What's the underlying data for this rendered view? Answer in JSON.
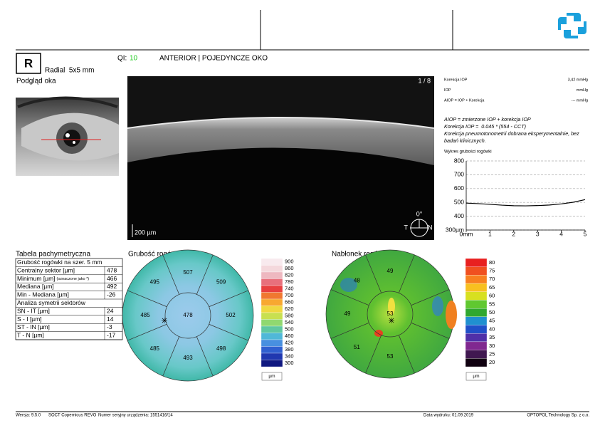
{
  "header": {
    "eye": "R",
    "scan": "Radial  5x5 mm",
    "preview": "Podgląd oka",
    "qi_label": "QI:",
    "qi_value": "10",
    "mode": "ANTERIOR | POJEDYNCZE OKO"
  },
  "oct": {
    "page": "1 / 8",
    "scale": "200 µm",
    "angle": "0°",
    "left": "T",
    "right": "N"
  },
  "iop": {
    "rows": [
      {
        "label": "Korekcja IOP",
        "value": "3,42 mmHg"
      },
      {
        "label": "IOP",
        "value": "mmHg"
      },
      {
        "label": "AIOP = IOP + Korekcja",
        "value": "--- mmHg"
      }
    ],
    "notes": [
      "AIOP = zmierzone IOP + korekcja IOP",
      "Korekcja IOP =  0.045 * (554 - CCT)",
      "Korekcja pneumotonometrii dobrana eksperymentalnie, bez",
      "badań klinicznych."
    ]
  },
  "profile_chart": {
    "type": "line",
    "title": "Wykres grubości rogówki",
    "x": [
      0,
      0.5,
      1,
      1.5,
      2,
      2.5,
      3,
      3.5,
      4,
      4.5,
      5
    ],
    "values": [
      495,
      491,
      486,
      480,
      476,
      475,
      477,
      481,
      489,
      501,
      520
    ],
    "color": "#000000",
    "xlim": [
      0,
      5
    ],
    "ylim": [
      300,
      800
    ],
    "xticks": [
      {
        "value": 0,
        "label": "0mm"
      },
      1,
      2,
      3,
      4,
      5
    ],
    "yticks": [
      {
        "value": 300,
        "label": "300µm"
      },
      400,
      500,
      600,
      700,
      800
    ],
    "grid": true
  },
  "table": {
    "title": "Tabela pachymetryczna",
    "sections": [
      {
        "title": "Grubość rogówki na szer. 5 mm",
        "rows": [
          {
            "label": "Centralny sektor [µm]",
            "value": 478
          },
          {
            "label": "Minimum [µm]",
            "note": "(oznaczone jako *)",
            "value": 466
          },
          {
            "label": "Mediana [µm]",
            "value": 492
          },
          {
            "label": "Min - Mediana [µm]",
            "value": -26
          }
        ]
      },
      {
        "title": "Analiza symetrii sektorów",
        "rows": [
          {
            "label": "SN - IT [µm]",
            "value": 24
          },
          {
            "label": "S - I [µm]",
            "value": 14
          },
          {
            "label": "ST - IN [µm]",
            "value": -3
          },
          {
            "label": "T - N [µm]",
            "value": -17
          }
        ]
      }
    ]
  },
  "thickness_map": {
    "title": "Grubość rogówki",
    "center": 478,
    "sectors": [
      507,
      509,
      502,
      498,
      493,
      485,
      485,
      495
    ],
    "scale": {
      "values": [
        900,
        860,
        820,
        780,
        740,
        700,
        660,
        620,
        580,
        540,
        500,
        460,
        420,
        380,
        340,
        300
      ],
      "colors": [
        "#f8eaee",
        "#f4d8dc",
        "#eeb8c0",
        "#e8707c",
        "#e84040",
        "#f07830",
        "#f8a830",
        "#f0d840",
        "#c8e050",
        "#90d870",
        "#60c8a0",
        "#50b8d8",
        "#4890e0",
        "#3060d0",
        "#2038b0",
        "#101880"
      ],
      "unit": "µm"
    }
  },
  "epithelium_map": {
    "title": "Nabłonek rogówki",
    "center": 53,
    "sectors": [
      49,
      null,
      null,
      null,
      53,
      51,
      49,
      48
    ],
    "scale": {
      "values": [
        80,
        75,
        70,
        65,
        60,
        55,
        50,
        45,
        40,
        35,
        30,
        25,
        20
      ],
      "colors": [
        "#e82020",
        "#f05020",
        "#f88020",
        "#f8c020",
        "#d8e020",
        "#60c830",
        "#30a830",
        "#2090d0",
        "#2050c8",
        "#5030a8",
        "#802890",
        "#401850",
        "#100010"
      ],
      "unit": "µm"
    }
  },
  "footer": {
    "version": "Wersja: 9.5.0",
    "device": "SOCT Copernicus REVO",
    "serial": "Numer seryjny urządzenia: 1551416/14",
    "date": "Data wydruku: 01.09.2019",
    "company": "OPTOPOL Technology Sp. z o.o."
  }
}
